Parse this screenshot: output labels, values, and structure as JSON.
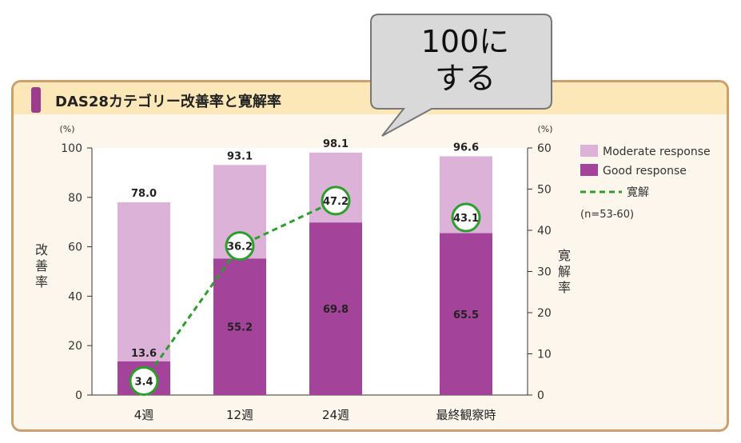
{
  "panel": {
    "title": "DAS28カテゴリー改善率と寛解率"
  },
  "callout": {
    "line1": "100に",
    "line2": "する"
  },
  "chart_data": {
    "type": "bar",
    "title": "DAS28カテゴリー改善率と寛解率",
    "categories": [
      "4週",
      "12週",
      "24週",
      "最終観察時"
    ],
    "series": [
      {
        "name": "Moderate response",
        "values": [
          78.0,
          93.1,
          98.1,
          96.6
        ],
        "color": "#dcb2d8",
        "axis": "left",
        "kind": "bar-total"
      },
      {
        "name": "Good response",
        "values": [
          13.6,
          55.2,
          69.8,
          65.5
        ],
        "color": "#a3439a",
        "axis": "left",
        "kind": "bar"
      },
      {
        "name": "寛解",
        "values": [
          3.4,
          36.2,
          47.2,
          43.1
        ],
        "color": "#2aa02a",
        "axis": "right",
        "kind": "line-dashed"
      }
    ],
    "ylabel_left": "改善率",
    "ylabel_right": "寛解率",
    "unit_left": "(%)",
    "unit_right": "(%)",
    "ylim_left": [
      0,
      100
    ],
    "yticks_left": [
      0,
      20,
      40,
      60,
      80,
      100
    ],
    "ylim_right": [
      0,
      60
    ],
    "yticks_right": [
      0,
      10,
      20,
      30,
      40,
      50,
      60
    ],
    "legend": {
      "items": [
        "Moderate response",
        "Good response",
        "寛解"
      ],
      "note": "(n=53-60)",
      "position": "top-right"
    }
  }
}
